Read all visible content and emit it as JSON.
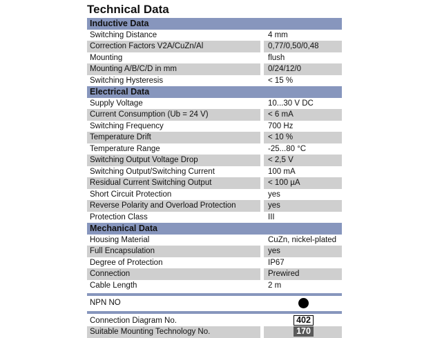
{
  "title": "Technical Data",
  "sections": [
    {
      "header": "Inductive Data",
      "rows": [
        {
          "label": "Switching Distance",
          "value": "4 mm"
        },
        {
          "label": "Correction Factors V2A/CuZn/Al",
          "value": "0,77/0,50/0,48"
        },
        {
          "label": "Mounting",
          "value": "flush"
        },
        {
          "label": "Mounting A/B/C/D in mm",
          "value": "0/24/12/0"
        },
        {
          "label": "Switching Hysteresis",
          "value": "< 15 %"
        }
      ]
    },
    {
      "header": "Electrical Data",
      "rows": [
        {
          "label": "Supply Voltage",
          "value": "10...30 V DC"
        },
        {
          "label": "Current Consumption (Ub = 24 V)",
          "value": "< 6 mA"
        },
        {
          "label": "Switching Frequency",
          "value": "700 Hz"
        },
        {
          "label": "Temperature Drift",
          "value": "< 10 %"
        },
        {
          "label": "Temperature Range",
          "value": "-25...80 °C"
        },
        {
          "label": "Switching Output Voltage Drop",
          "value": "< 2,5 V"
        },
        {
          "label": "Switching Output/Switching Current",
          "value": "100 mA"
        },
        {
          "label": "Residual Current Switching Output",
          "value": "< 100 µA"
        },
        {
          "label": "Short Circuit Protection",
          "value": "yes"
        },
        {
          "label": "Reverse Polarity and Overload Protection",
          "value": "yes"
        },
        {
          "label": "Protection Class",
          "value": "III"
        }
      ]
    },
    {
      "header": "Mechanical Data",
      "rows": [
        {
          "label": "Housing Material",
          "value": "CuZn, nickel-plated"
        },
        {
          "label": "Full Encapsulation",
          "value": "yes"
        },
        {
          "label": "Degree of Protection",
          "value": "IP67"
        },
        {
          "label": "Connection",
          "value": "Prewired"
        },
        {
          "label": "Cable Length",
          "value": "2 m"
        }
      ]
    }
  ],
  "output": {
    "label": "NPN NO",
    "indicator": "filled-circle"
  },
  "footer": [
    {
      "label": "Connection Diagram No.",
      "value": "402"
    },
    {
      "label": "Suitable Mounting Technology No.",
      "value": "170"
    }
  ],
  "colors": {
    "header": "#8796bd",
    "shade": "#cfcfcf",
    "badge_dark": "#5a5a5a"
  }
}
